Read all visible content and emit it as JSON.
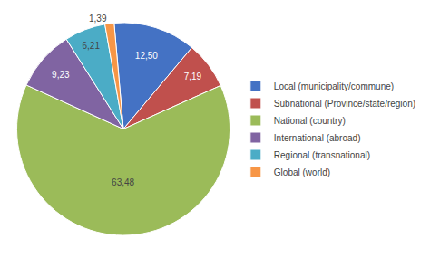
{
  "chart_data": {
    "type": "pie",
    "categories": [
      "Local (municipality/commune)",
      "Subnational (Province/state/region)",
      "National (country)",
      "International (abroad)",
      "Regional (transnational)",
      "Global (world)"
    ],
    "values": [
      12.5,
      7.19,
      63.48,
      9.23,
      6.21,
      1.39
    ],
    "value_labels": [
      "12,50",
      "7,19",
      "63,48",
      "9,23",
      "6,21",
      "1,39"
    ],
    "colors": [
      "#4472C4",
      "#C0504D",
      "#9BBB59",
      "#8064A2",
      "#4BACC6",
      "#F79646"
    ],
    "data_labels": true,
    "legend": "right"
  }
}
